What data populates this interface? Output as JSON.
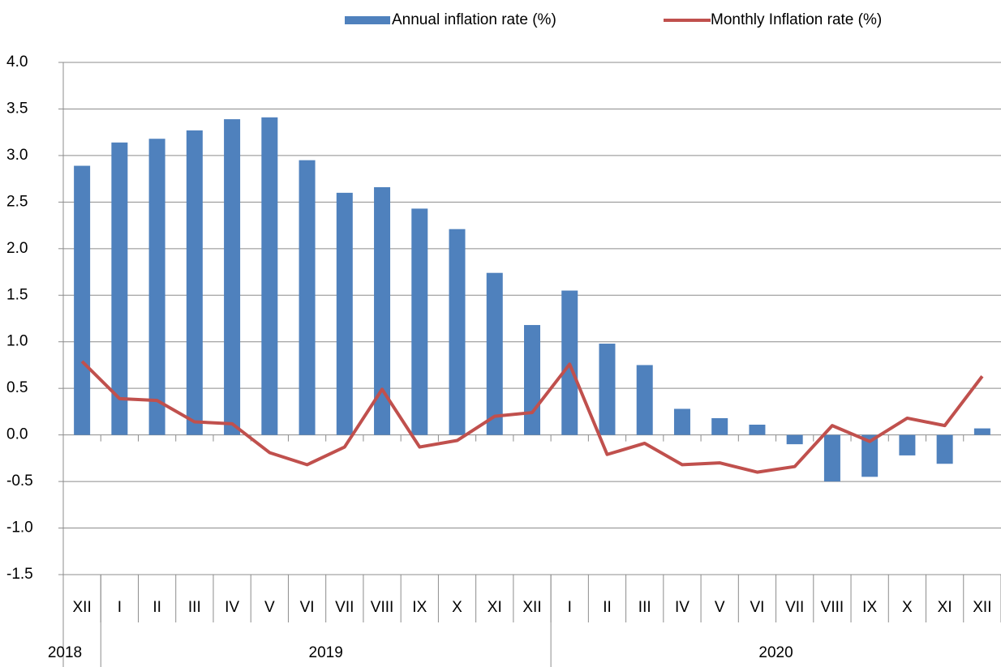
{
  "chart_data": {
    "type": "bar_line",
    "categories": [
      "XII",
      "I",
      "II",
      "III",
      "IV",
      "V",
      "VI",
      "VII",
      "VIII",
      "IX",
      "X",
      "XI",
      "XII",
      "I",
      "II",
      "III",
      "IV",
      "V",
      "VI",
      "VII",
      "VIII",
      "IX",
      "X",
      "XI",
      "XII"
    ],
    "x_groups": [
      {
        "label": "2018",
        "count": 1
      },
      {
        "label": "2019",
        "count": 12
      },
      {
        "label": "2020",
        "count": 12
      }
    ],
    "series": [
      {
        "name": "Annual inflation rate (%)",
        "type": "bar",
        "color": "#4f81bd",
        "values": [
          2.89,
          3.14,
          3.18,
          3.27,
          3.39,
          3.41,
          2.95,
          2.6,
          2.66,
          2.43,
          2.21,
          1.74,
          1.18,
          1.55,
          0.98,
          0.75,
          0.28,
          0.18,
          0.11,
          -0.1,
          -0.5,
          -0.45,
          -0.22,
          -0.31,
          0.07
        ]
      },
      {
        "name": "Monthly Inflation rate (%)",
        "type": "line",
        "color": "#c0504d",
        "values": [
          0.79,
          0.39,
          0.37,
          0.14,
          0.12,
          -0.19,
          -0.32,
          -0.13,
          0.49,
          -0.13,
          -0.06,
          0.2,
          0.24,
          0.76,
          -0.21,
          -0.09,
          -0.32,
          -0.3,
          -0.4,
          -0.34,
          0.1,
          -0.07,
          0.18,
          0.1,
          0.63
        ]
      }
    ],
    "ylim": [
      -1.5,
      4
    ],
    "yticks": [
      {
        "value": -1.5,
        "label": "-1.5"
      },
      {
        "value": -1,
        "label": "-1.0"
      },
      -0.5,
      {
        "value": 0,
        "label": "0.0"
      },
      0.5,
      {
        "value": 1,
        "label": "1.0"
      },
      1.5,
      {
        "value": 2,
        "label": "2.0"
      },
      2.5,
      {
        "value": 3,
        "label": "3.0"
      },
      3.5,
      {
        "value": 4,
        "label": "4.0"
      }
    ],
    "grid": true,
    "legend": "top"
  }
}
